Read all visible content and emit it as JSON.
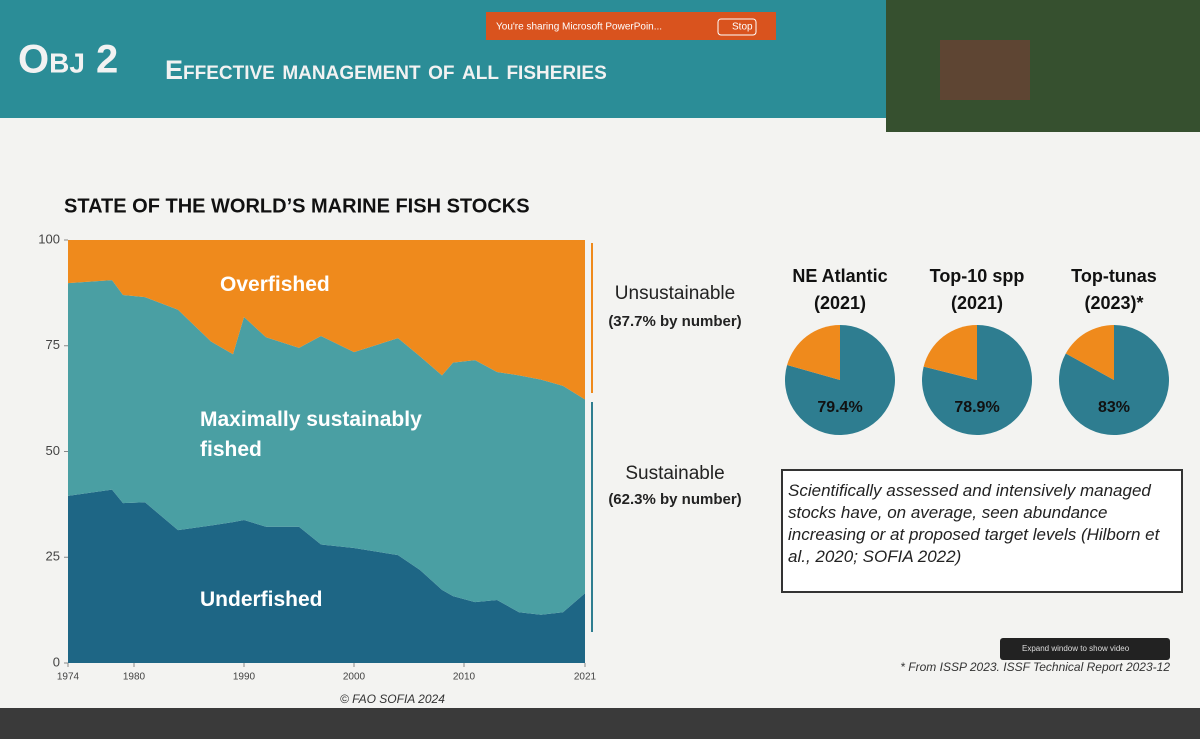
{
  "header": {
    "title_prefix": "Obj 2",
    "title": "Effective management of all fisheries"
  },
  "sharing_bar": {
    "text": "You're sharing Microsoft PowerPoin...",
    "stop": "Stop"
  },
  "chart_data": [
    {
      "type": "area",
      "title": "STATE OF THE WORLD’S MARINE FISH STOCKS",
      "x": [
        1974,
        1978,
        1979,
        1981,
        1984,
        1987,
        1989,
        1990,
        1992,
        1995,
        1997,
        2000,
        2004,
        2006,
        2008,
        2009,
        2011,
        2013,
        2015,
        2017,
        2019,
        2021
      ],
      "series": [
        {
          "name": "Underfished",
          "color": "#1e6685",
          "values": [
            39.5,
            41,
            37.8,
            38,
            31.4,
            32.5,
            33.3,
            33.8,
            32.2,
            32.2,
            28,
            27.2,
            25.5,
            22,
            17.3,
            15.8,
            14.4,
            14.9,
            12,
            11.4,
            12,
            16.5
          ]
        },
        {
          "name": "Maximally sustainably fished",
          "color": "#4a9fa3",
          "values": [
            50.3,
            49.5,
            49.2,
            48.5,
            52.1,
            43.5,
            39.7,
            48,
            44.8,
            42.3,
            49.3,
            46.3,
            51.3,
            50.5,
            50.7,
            55.2,
            57.2,
            53.9,
            56,
            55.6,
            53.5,
            45.8
          ]
        },
        {
          "name": "Overfished",
          "color": "#ef8a1c",
          "values": [
            10.2,
            9.5,
            13,
            13.5,
            16.5,
            24,
            27,
            18.2,
            23,
            25.5,
            22.7,
            26.5,
            23.2,
            27.5,
            32,
            29,
            28.4,
            31.2,
            32,
            33,
            34.5,
            37.7
          ]
        }
      ],
      "xlim": [
        1974,
        2021
      ],
      "xticks": [
        1974,
        1980,
        1990,
        2000,
        2010,
        2021
      ],
      "ylim": [
        0,
        100
      ],
      "yticks": [
        0,
        25,
        50,
        75,
        100
      ],
      "stacked": true
    },
    {
      "type": "pie",
      "title": "NE Atlantic (2021)",
      "values": [
        79.4,
        20.6
      ],
      "value_labels": [
        "79.4%",
        null
      ],
      "colors": [
        "#2e7d90",
        "#ef8a1c"
      ]
    },
    {
      "type": "pie",
      "title": "Top-10 spp (2021)",
      "values": [
        78.9,
        21.1
      ],
      "value_labels": [
        "78.9%",
        null
      ],
      "colors": [
        "#2e7d90",
        "#ef8a1c"
      ]
    },
    {
      "type": "pie",
      "title": "Top-tunas (2023)*",
      "values": [
        83,
        17
      ],
      "value_labels": [
        "83%",
        null
      ],
      "colors": [
        "#2e7d90",
        "#ef8a1c"
      ]
    }
  ],
  "annotations": {
    "unsustainable": "Unsustainable",
    "unsustainable_share": "(37.7% by number)",
    "sustainable": "Sustainable",
    "sustainable_share": "(62.3% by number)"
  },
  "note_box": "Scientifically assessed and intensively managed stocks have, on average, seen abundance increasing or at proposed target levels (Hilborn et al., 2020; SOFIA 2022)",
  "footnote": "* From ISSP 2023. ISSF Technical Report 2023-12",
  "source": "© FAO SOFIA 2024",
  "video_popup": "Expand window to show video"
}
